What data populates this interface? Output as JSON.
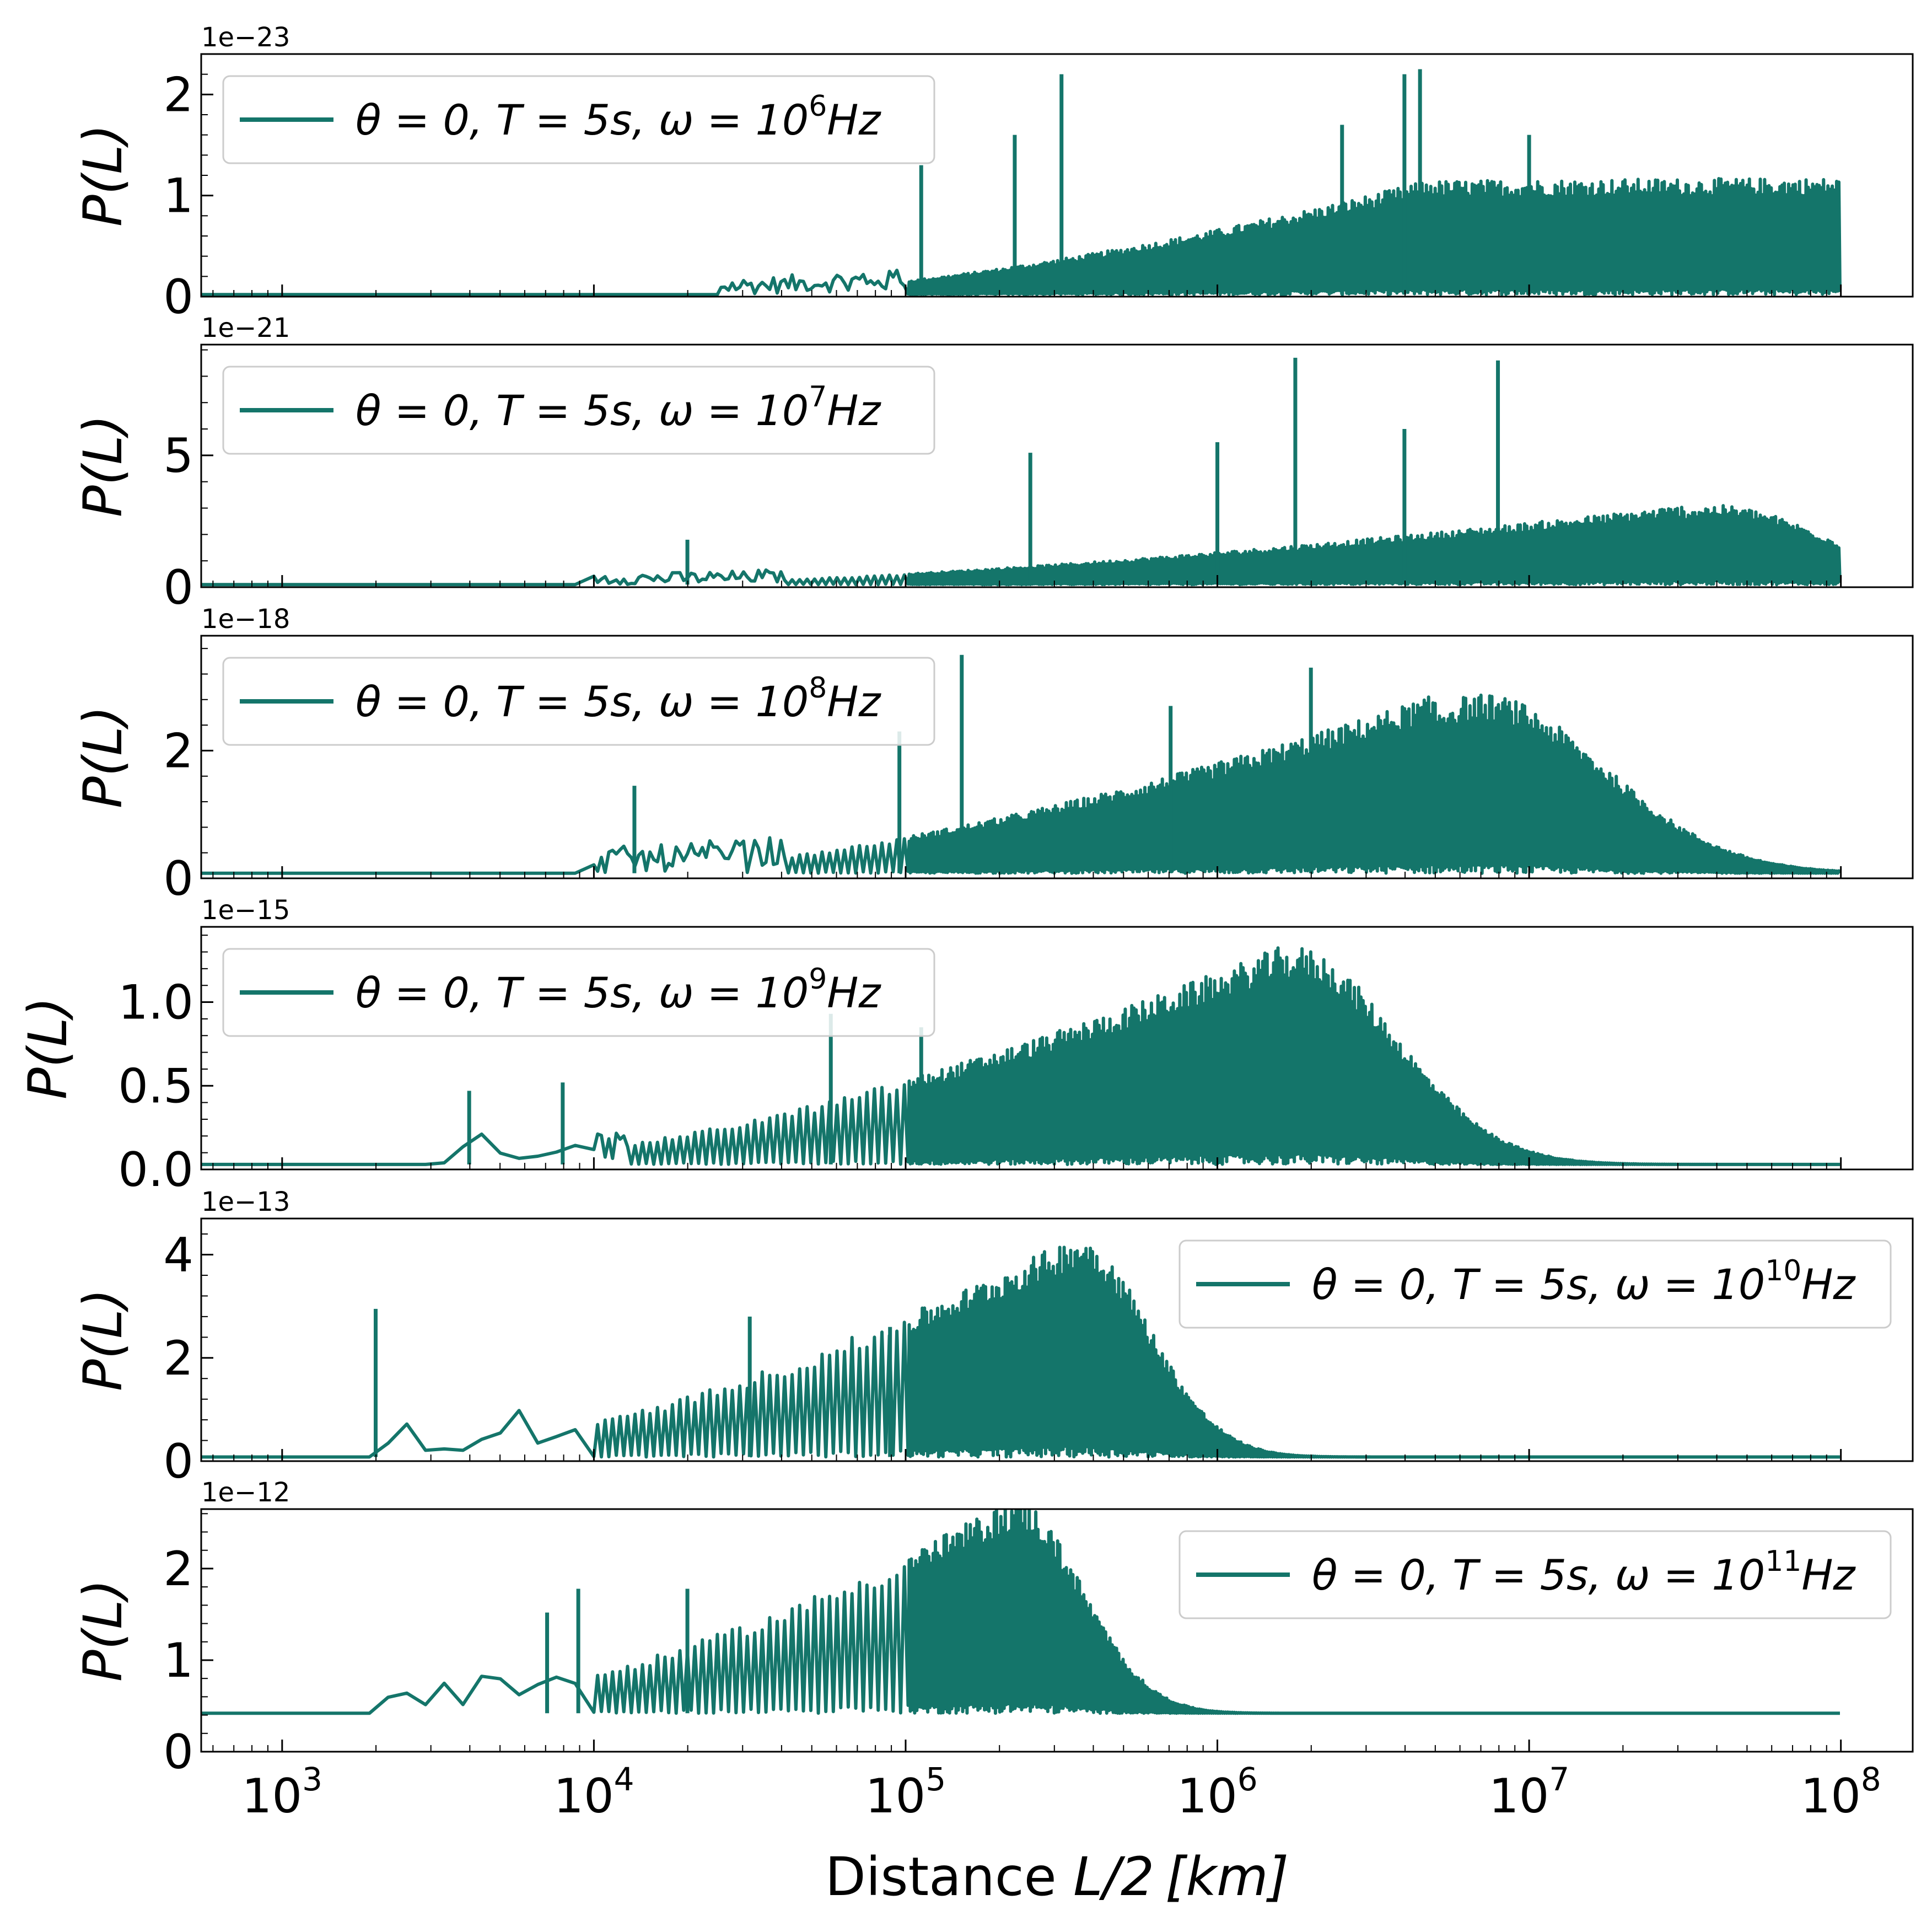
{
  "chart_data": {
    "type": "line",
    "xscale": "log",
    "xlim": [
      550,
      170000000
    ],
    "xticks": [
      {
        "label": "10",
        "exp": "3",
        "value": 1000
      },
      {
        "label": "10",
        "exp": "4",
        "value": 10000
      },
      {
        "label": "10",
        "exp": "5",
        "value": 100000
      },
      {
        "label": "10",
        "exp": "6",
        "value": 1000000
      },
      {
        "label": "10",
        "exp": "7",
        "value": 10000000
      },
      {
        "label": "10",
        "exp": "8",
        "value": 100000000
      }
    ],
    "xlabel": {
      "prefix": "Distance ",
      "var": "L",
      "mid": "/2",
      "unit": "[km]"
    },
    "color": "#14756a",
    "panels": [
      {
        "id": "p1",
        "offset": "1e−23",
        "ylabel": "P(L)",
        "ylim": [
          0,
          2.4
        ],
        "yticks": [
          {
            "value": 0,
            "label": "0"
          },
          {
            "value": 1,
            "label": "1"
          },
          {
            "value": 2,
            "label": "2"
          }
        ],
        "legend": {
          "position": "upper-left",
          "label": "θ = 0, T = 5s, ω = 10",
          "exp": "6",
          "unit": "Hz"
        },
        "series": {
          "name": "θ = 0, T = 5s, ω = 10^6 Hz",
          "start_log": 2.8,
          "rise_log": 4.4,
          "sat_log": 6.7,
          "peak_log": 8.0,
          "width": 9,
          "envelope_max": 1.15,
          "baseline": 0.02,
          "spikes": [
            [
              5.5,
              2.2
            ],
            [
              6.6,
              2.2
            ],
            [
              6.65,
              2.25
            ],
            [
              6.4,
              1.7
            ],
            [
              7.0,
              1.6
            ],
            [
              5.05,
              1.3
            ],
            [
              5.35,
              1.6
            ]
          ]
        }
      },
      {
        "id": "p2",
        "offset": "1e−21",
        "ylabel": "P(L)",
        "ylim": [
          0,
          9.2
        ],
        "yticks": [
          {
            "value": 0,
            "label": "0"
          },
          {
            "value": 5,
            "label": "5"
          }
        ],
        "legend": {
          "position": "upper-left",
          "label": "θ = 0, T = 5s, ω = 10",
          "exp": "7",
          "unit": "Hz"
        },
        "series": {
          "name": "θ = 0, T = 5s, ω = 10^7 Hz",
          "start_log": 2.8,
          "rise_log": 4.0,
          "sat_log": 7.5,
          "peak_log": 7.6,
          "width": 0.5,
          "envelope_max": 3.0,
          "baseline": 0.1,
          "spikes": [
            [
              6.25,
              8.7
            ],
            [
              6.9,
              8.6
            ],
            [
              6.6,
              6.0
            ],
            [
              6.0,
              5.5
            ],
            [
              5.4,
              5.1
            ],
            [
              4.3,
              1.8
            ]
          ]
        }
      },
      {
        "id": "p3",
        "offset": "1e−18",
        "ylabel": "P(L)",
        "ylim": [
          0,
          3.8
        ],
        "yticks": [
          {
            "value": 0,
            "label": "0"
          },
          {
            "value": 2,
            "label": "2"
          }
        ],
        "legend": {
          "position": "upper-left",
          "label": "θ = 0, T = 5s, ω = 10",
          "exp": "8",
          "unit": "Hz"
        },
        "series": {
          "name": "θ = 0, T = 5s, ω = 10^8 Hz",
          "start_log": 2.8,
          "rise_log": 4.0,
          "sat_log": 6.7,
          "peak_log": 6.85,
          "width": 0.55,
          "envelope_max": 2.8,
          "baseline": 0.08,
          "spikes": [
            [
              5.18,
              3.5
            ],
            [
              6.3,
              3.3
            ],
            [
              5.85,
              2.7
            ],
            [
              4.13,
              1.45
            ],
            [
              4.98,
              2.3
            ]
          ]
        }
      },
      {
        "id": "p4",
        "offset": "1e−15",
        "ylabel": "P(L)",
        "ylim": [
          0,
          1.45
        ],
        "yticks": [
          {
            "value": 0,
            "label": "0.0"
          },
          {
            "value": 0.5,
            "label": "0.5"
          },
          {
            "value": 1.0,
            "label": "1.0"
          }
        ],
        "legend": {
          "position": "upper-left",
          "label": "θ = 0, T = 5s, ω = 10",
          "exp": "9",
          "unit": "Hz"
        },
        "series": {
          "name": "θ = 0, T = 5s, ω = 10^9 Hz",
          "start_log": 2.8,
          "rise_log": 3.5,
          "sat_log": 6.2,
          "peak_log": 6.25,
          "width": 0.45,
          "envelope_max": 1.3,
          "baseline": 0.03,
          "spikes": [
            [
              4.76,
              0.93
            ],
            [
              5.05,
              0.85
            ],
            [
              3.6,
              0.47
            ],
            [
              3.9,
              0.52
            ]
          ]
        }
      },
      {
        "id": "p5",
        "offset": "1e−13",
        "ylabel": "P(L)",
        "ylim": [
          0,
          4.7
        ],
        "yticks": [
          {
            "value": 0,
            "label": "0"
          },
          {
            "value": 2,
            "label": "2"
          },
          {
            "value": 4,
            "label": "4"
          }
        ],
        "legend": {
          "position": "upper-right",
          "label": "θ = 0, T = 5s, ω = 10",
          "exp": "10",
          "unit": "Hz"
        },
        "series": {
          "name": "θ = 0, T = 5s, ω = 10^10 Hz",
          "start_log": 2.8,
          "rise_log": 3.3,
          "sat_log": 5.55,
          "peak_log": 5.55,
          "width": 0.32,
          "envelope_max": 4.3,
          "baseline": 0.08,
          "spikes": [
            [
              3.3,
              2.95
            ],
            [
              4.5,
              2.8
            ],
            [
              4.95,
              2.6
            ]
          ]
        }
      },
      {
        "id": "p6",
        "offset": "1e−12",
        "ylabel": "P(L)",
        "ylim": [
          0,
          2.65
        ],
        "yticks": [
          {
            "value": 0,
            "label": "0"
          },
          {
            "value": 1,
            "label": "1"
          },
          {
            "value": 2,
            "label": "2"
          }
        ],
        "legend": {
          "position": "upper-right",
          "label": "θ = 0, T = 5s, ω = 10",
          "exp": "11",
          "unit": "Hz"
        },
        "series": {
          "name": "θ = 0, T = 5s, ω = 10^11 Hz",
          "start_log": 2.8,
          "rise_log": 3.3,
          "sat_log": 5.35,
          "peak_log": 5.35,
          "width": 0.3,
          "envelope_max": 2.35,
          "baseline": 0.42,
          "spikes": [
            [
              3.95,
              1.78
            ],
            [
              3.85,
              1.52
            ],
            [
              4.3,
              1.78
            ]
          ]
        }
      }
    ]
  }
}
